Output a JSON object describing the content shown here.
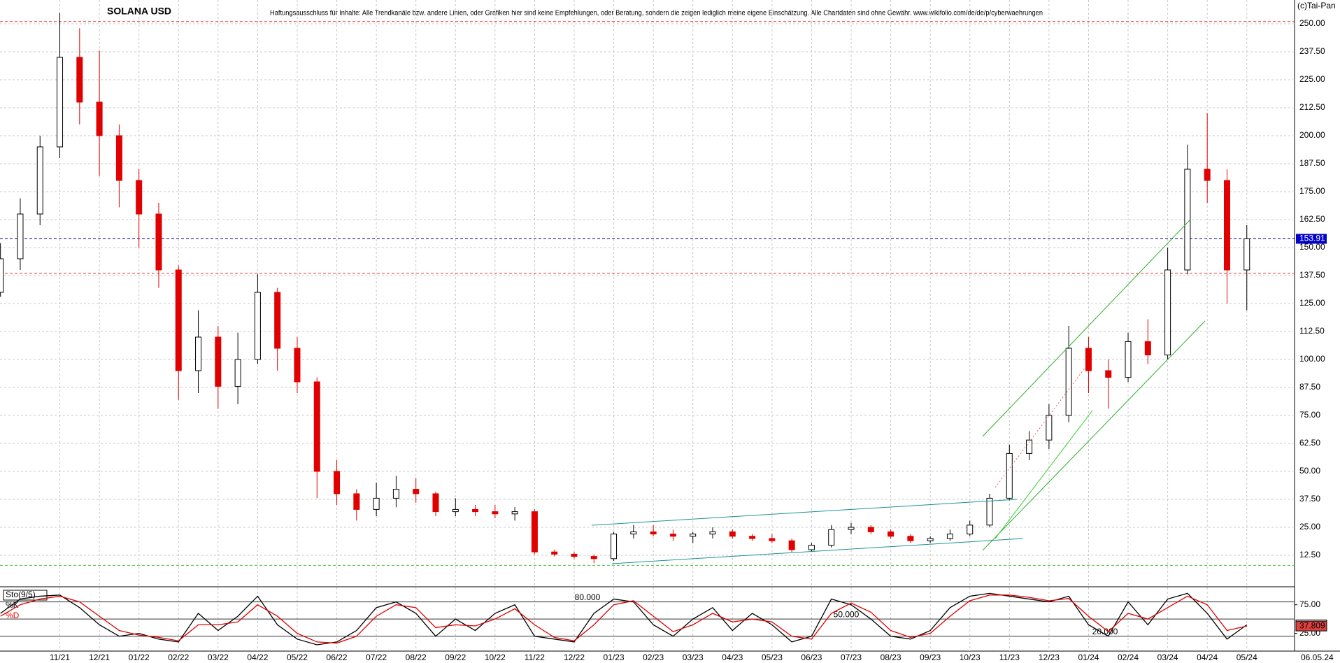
{
  "chart_data": [
    {
      "type": "candlestick",
      "title": "SOLANA USD",
      "subtitle": "Haftungsausschluss für Inhalte: Alle Trendkanäle bzw. andere Linien, oder Grafiken hier sind keine Empfehlungen, oder Beratung, sondern die zeigen lediglich meine eigene Einschätzung. Alle Chartdaten sind ohne Gewähr. www.wikifolio.com/de/de/p/cyberwaehrungen",
      "source": "(c)Tai-Pan",
      "last_date": "06.05.24",
      "categories": [
        null,
        null,
        null,
        "11/21",
        null,
        "12/21",
        null,
        "01/22",
        null,
        "02/22",
        null,
        "03/22",
        null,
        "04/22",
        null,
        "05/22",
        null,
        "06/22",
        null,
        "07/22",
        null,
        "08/22",
        null,
        "09/22",
        null,
        "10/22",
        null,
        "11/22",
        null,
        "12/22",
        null,
        "01/23",
        null,
        "02/23",
        null,
        "03/23",
        null,
        "04/23",
        null,
        "05/23",
        null,
        "06/23",
        null,
        "07/23",
        null,
        "08/23",
        null,
        "09/23",
        null,
        "10/23",
        null,
        "11/23",
        null,
        "12/23",
        null,
        "01/24",
        null,
        "02/24",
        null,
        "03/24",
        null,
        "04/24",
        null,
        "05/24"
      ],
      "open": [
        130,
        145,
        165,
        195,
        235,
        215,
        200,
        180,
        165,
        140,
        95,
        110,
        88,
        100,
        130,
        105,
        90,
        50,
        40,
        33,
        38,
        42,
        40,
        32,
        33,
        32,
        31,
        32,
        14,
        13,
        12,
        11,
        22,
        23,
        22,
        21,
        22,
        23,
        21,
        20,
        19,
        15,
        17,
        24,
        25,
        23,
        21,
        19,
        20,
        22,
        26,
        38,
        58,
        64,
        75,
        105,
        95,
        92,
        108,
        102,
        140,
        185,
        180,
        140
      ],
      "high": [
        152,
        172,
        200,
        255,
        248,
        238,
        205,
        185,
        170,
        142,
        122,
        115,
        112,
        138,
        132,
        110,
        92,
        55,
        42,
        45,
        48,
        47,
        41,
        38,
        35,
        35,
        34,
        33,
        15,
        14,
        13,
        23,
        26,
        26,
        24,
        23,
        25,
        24,
        22,
        22,
        20,
        18,
        26,
        27,
        26,
        24,
        22,
        21,
        24,
        28,
        40,
        62,
        68,
        80,
        115,
        110,
        100,
        112,
        118,
        150,
        196,
        210,
        185,
        160
      ],
      "low": [
        128,
        140,
        160,
        190,
        205,
        182,
        168,
        150,
        132,
        82,
        85,
        78,
        80,
        98,
        95,
        85,
        38,
        35,
        28,
        30,
        34,
        36,
        30,
        30,
        30,
        29,
        28,
        13,
        12,
        11,
        9,
        10,
        20,
        21,
        19,
        18,
        20,
        20,
        19,
        18,
        14,
        14,
        16,
        22,
        22,
        20,
        18,
        18,
        19,
        21,
        25,
        37,
        55,
        60,
        72,
        85,
        78,
        90,
        98,
        100,
        138,
        170,
        125,
        122
      ],
      "close": [
        145,
        165,
        195,
        235,
        215,
        200,
        180,
        165,
        140,
        95,
        110,
        88,
        100,
        130,
        105,
        90,
        50,
        40,
        33,
        38,
        42,
        40,
        32,
        33,
        32,
        31,
        32,
        14,
        13,
        12,
        11,
        22,
        23,
        22,
        21,
        22,
        23,
        21,
        20,
        19,
        15,
        17,
        24,
        25,
        23,
        21,
        19,
        20,
        22,
        26,
        38,
        58,
        64,
        75,
        105,
        95,
        92,
        108,
        102,
        140,
        185,
        180,
        140,
        153.91
      ],
      "up_color": "#000000",
      "down_color": "#e00000",
      "ylim": [
        -1.25,
        260.625
      ],
      "yticks": [
        {
          "value": 12.5,
          "label": "12.50"
        },
        {
          "value": 25,
          "label": "25.00"
        },
        {
          "value": 37.5,
          "label": "37.50"
        },
        {
          "value": 50,
          "label": "50.00"
        },
        {
          "value": 62.5,
          "label": "62.50"
        },
        {
          "value": 75,
          "label": "75.00"
        },
        {
          "value": 87.5,
          "label": "87.50"
        },
        {
          "value": 100,
          "label": "100.00"
        },
        {
          "value": 112.5,
          "label": "112.50"
        },
        {
          "value": 125,
          "label": "125.00"
        },
        {
          "value": 137.5,
          "label": "137.50"
        },
        {
          "value": 150,
          "label": "150.00"
        },
        {
          "value": 162.5,
          "label": "162.50"
        },
        {
          "value": 175,
          "label": "175.00"
        },
        {
          "value": 187.5,
          "label": "187.50"
        },
        {
          "value": 200,
          "label": "200.00"
        },
        {
          "value": 212.5,
          "label": "212.50"
        },
        {
          "value": 225,
          "label": "225.00"
        },
        {
          "value": 237.5,
          "label": "237.50"
        },
        {
          "value": 250,
          "label": "250.00"
        }
      ],
      "grid": true,
      "lines": [
        {
          "value": 251,
          "color": "#e03030"
        },
        {
          "value": 138.5,
          "color": "#e03030"
        },
        {
          "value": 153.91,
          "color": "#000080"
        },
        {
          "value": 8,
          "color": "#40c040"
        }
      ]
    },
    {
      "type": "line",
      "title": "Sto(9/5)",
      "series": [
        {
          "name": "%K",
          "color": "#000000",
          "values": [
            60,
            85,
            90,
            92,
            70,
            40,
            20,
            25,
            15,
            10,
            60,
            30,
            55,
            90,
            40,
            15,
            5,
            10,
            30,
            70,
            80,
            60,
            20,
            50,
            30,
            60,
            75,
            20,
            15,
            10,
            60,
            85,
            80,
            40,
            20,
            50,
            70,
            30,
            60,
            40,
            10,
            20,
            85,
            75,
            50,
            20,
            15,
            30,
            70,
            90,
            95,
            90,
            85,
            80,
            90,
            40,
            20,
            80,
            40,
            85,
            95,
            60,
            15,
            39.927
          ]
        },
        {
          "name": "%D",
          "color": "#e00000",
          "values": [
            55,
            75,
            85,
            90,
            80,
            55,
            30,
            22,
            18,
            12,
            40,
            40,
            45,
            75,
            55,
            25,
            10,
            8,
            20,
            55,
            75,
            70,
            35,
            40,
            38,
            50,
            68,
            40,
            18,
            12,
            40,
            75,
            82,
            55,
            28,
            40,
            60,
            45,
            50,
            45,
            20,
            15,
            60,
            78,
            62,
            30,
            18,
            25,
            55,
            82,
            92,
            92,
            88,
            82,
            86,
            55,
            28,
            60,
            50,
            70,
            90,
            75,
            30,
            37.809
          ]
        }
      ],
      "ylim": [
        -6,
        104
      ],
      "yticks": [
        {
          "value": 25,
          "label": "25.00"
        },
        {
          "value": 75,
          "label": "75.00"
        }
      ],
      "levels": [
        {
          "value": 80,
          "label": "80.000"
        },
        {
          "value": 50,
          "label": "50.000"
        },
        {
          "value": 20,
          "label": "20.000"
        }
      ]
    }
  ]
}
